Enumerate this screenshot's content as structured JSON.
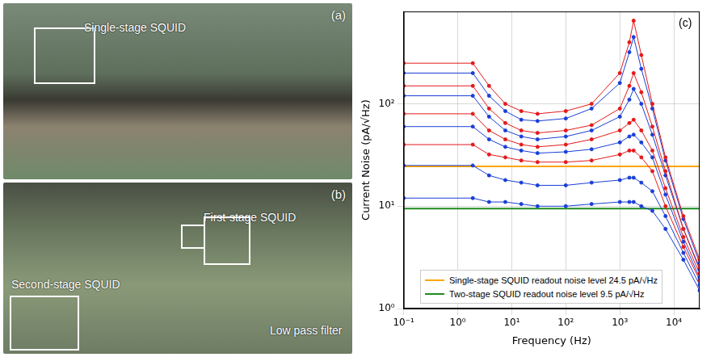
{
  "panels": [
    {
      "label": "(a)",
      "annotations": [
        "Single-stage SQUID"
      ]
    },
    {
      "label": "(b)",
      "annotations": [
        "First-stage SQUID",
        "Second-stage SQUID",
        "Low pass filter"
      ]
    }
  ],
  "chart_data": {
    "type": "line",
    "panel_label": "(c)",
    "x_label": "Frequency (Hz)",
    "y_label": "Current Noise (pA/√Hz)",
    "log": true,
    "grid": true,
    "legend": "lower left",
    "xlim": [
      0.1,
      30000
    ],
    "ylim": [
      1,
      800
    ],
    "xticks": [
      {
        "value": 0.1,
        "label": "10⁻¹"
      },
      {
        "value": 1,
        "label": "10⁰"
      },
      {
        "value": 10,
        "label": "10¹"
      },
      {
        "value": 100,
        "label": "10²"
      },
      {
        "value": 1000,
        "label": "10³"
      },
      {
        "value": 10000,
        "label": "10⁴"
      }
    ],
    "yticks": [
      {
        "value": 1,
        "label": "10⁰"
      },
      {
        "value": 10,
        "label": "10¹"
      },
      {
        "value": 100,
        "label": "10²"
      }
    ],
    "series": [
      {
        "color": "#e41a1c",
        "marker": "circle",
        "line_style": "solid",
        "x": [
          0.1,
          1.9,
          3.8,
          7.6,
          15,
          30,
          100,
          300,
          1000,
          1500,
          1800,
          2500,
          4000,
          7000,
          15000,
          30000
        ],
        "values": [
          250,
          250,
          150,
          100,
          85,
          80,
          85,
          100,
          200,
          400,
          650,
          300,
          100,
          30,
          8,
          3
        ]
      },
      {
        "color": "#1a3fd6",
        "marker": "circle",
        "line_style": "solid",
        "x": [
          0.1,
          1.9,
          3.8,
          7.6,
          15,
          30,
          100,
          300,
          1000,
          1500,
          1800,
          2500,
          4000,
          7000,
          15000,
          30000
        ],
        "values": [
          200,
          200,
          120,
          85,
          70,
          68,
          72,
          90,
          160,
          320,
          450,
          220,
          90,
          28,
          7.5,
          2.8
        ]
      },
      {
        "color": "#e41a1c",
        "marker": "circle",
        "line_style": "solid",
        "x": [
          0.1,
          1.9,
          3.8,
          7.6,
          15,
          30,
          100,
          300,
          1000,
          1500,
          1800,
          2500,
          4000,
          7000,
          15000,
          30000
        ],
        "values": [
          150,
          150,
          90,
          65,
          55,
          52,
          55,
          62,
          90,
          150,
          200,
          130,
          60,
          22,
          6,
          2.5
        ]
      },
      {
        "color": "#1a3fd6",
        "marker": "circle",
        "line_style": "solid",
        "x": [
          0.1,
          1.9,
          3.8,
          7.6,
          15,
          30,
          100,
          300,
          1000,
          1500,
          1800,
          2500,
          4000,
          7000,
          15000,
          30000
        ],
        "values": [
          120,
          120,
          75,
          55,
          48,
          45,
          48,
          55,
          75,
          110,
          140,
          100,
          50,
          20,
          6,
          2.4
        ]
      },
      {
        "color": "#e41a1c",
        "marker": "circle",
        "line_style": "solid",
        "x": [
          0.1,
          1.9,
          3.8,
          7.6,
          15,
          30,
          100,
          300,
          1000,
          1500,
          1800,
          2500,
          4000,
          7000,
          15000,
          30000
        ],
        "values": [
          80,
          80,
          55,
          45,
          40,
          38,
          40,
          45,
          55,
          65,
          70,
          55,
          35,
          15,
          5,
          2.2
        ]
      },
      {
        "color": "#1a3fd6",
        "marker": "circle",
        "line_style": "solid",
        "x": [
          0.1,
          1.9,
          3.8,
          7.6,
          15,
          30,
          100,
          300,
          1000,
          1500,
          1800,
          2500,
          4000,
          7000,
          15000,
          30000
        ],
        "values": [
          60,
          60,
          45,
          38,
          35,
          33,
          34,
          36,
          42,
          48,
          50,
          42,
          30,
          13,
          4.5,
          2
        ]
      },
      {
        "color": "#e41a1c",
        "marker": "circle",
        "line_style": "solid",
        "x": [
          0.1,
          1.9,
          3.8,
          7.6,
          15,
          30,
          100,
          300,
          1000,
          1500,
          1800,
          2500,
          4000,
          7000,
          15000,
          30000
        ],
        "values": [
          40,
          40,
          32,
          30,
          28,
          27,
          27,
          28,
          32,
          35,
          35,
          30,
          22,
          10,
          4,
          1.9
        ]
      },
      {
        "color": "#1a3fd6",
        "marker": "circle",
        "line_style": "solid",
        "x": [
          0.1,
          1.9,
          3.8,
          7.6,
          15,
          30,
          100,
          300,
          1000,
          1500,
          1800,
          2500,
          4000,
          7000,
          15000,
          30000
        ],
        "values": [
          25,
          25,
          20,
          18,
          17,
          16,
          16,
          17,
          18,
          19,
          19,
          17,
          14,
          8,
          3.5,
          1.7
        ]
      },
      {
        "color": "#1a3fd6",
        "marker": "circle",
        "line_style": "solid",
        "x": [
          0.1,
          1.9,
          3.8,
          7.6,
          15,
          30,
          100,
          300,
          1000,
          1500,
          1800,
          2500,
          4000,
          7000,
          15000,
          30000
        ],
        "values": [
          12,
          12,
          11,
          11,
          10.5,
          10,
          10,
          10.5,
          11,
          11,
          11,
          10,
          9,
          6,
          3,
          1.5
        ]
      },
      {
        "name": "Single-stage SQUID readout noise level 24.5 pA/√Hz",
        "color": "#ffa500",
        "marker": "none",
        "line_style": "solid",
        "x": [
          0.1,
          30000
        ],
        "values": [
          24.5,
          24.5
        ]
      },
      {
        "name": "Two-stage SQUID readout noise level 9.5 pA/√Hz",
        "color": "#1e8c1e",
        "marker": "none",
        "line_style": "solid",
        "x": [
          0.1,
          30000
        ],
        "values": [
          9.5,
          9.5
        ]
      }
    ]
  }
}
